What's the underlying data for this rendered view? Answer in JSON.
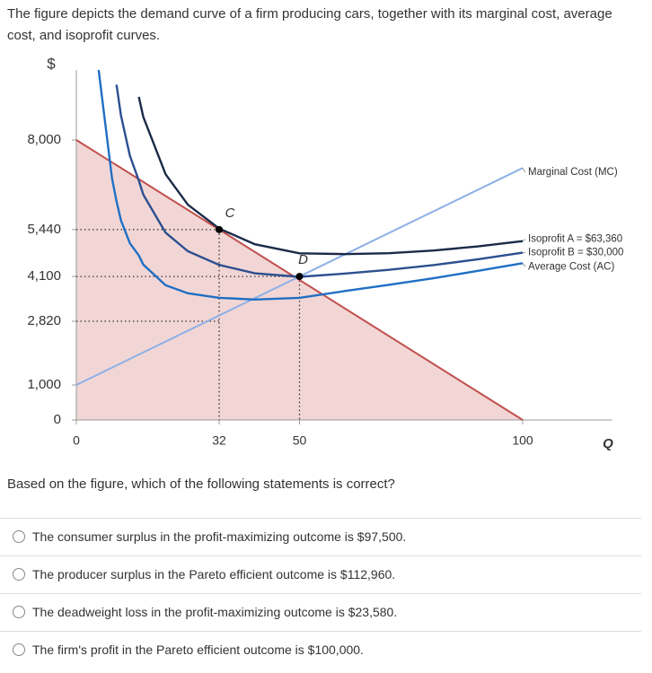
{
  "question": {
    "intro": "The figure depicts the demand curve of a firm producing cars, together with its marginal cost, average cost, and isoprofit curves.",
    "prompt": "Based on the figure, which of the following statements is correct?",
    "options": [
      "The consumer surplus in the profit-maximizing outcome is $97,500.",
      "The producer surplus in the Pareto efficient outcome is $112,960.",
      "The deadweight loss in the profit-maximizing outcome is $23,580.",
      "The firm's profit in the Pareto efficient outcome is $100,000."
    ]
  },
  "chart_data": {
    "type": "line",
    "x_label": "Q",
    "y_label": "$",
    "xlim": [
      0,
      120
    ],
    "ylim": [
      0,
      10000
    ],
    "xticks": [
      0,
      32,
      50,
      100
    ],
    "yticks": [
      0,
      {
        "value": 1000,
        "label": "1,000"
      },
      {
        "value": 2820,
        "label": "2,820"
      },
      {
        "value": 4100,
        "label": "4,100"
      },
      {
        "value": 5440,
        "label": "5,440"
      },
      {
        "value": 8000,
        "label": "8,000"
      }
    ],
    "series": [
      {
        "name": "Demand",
        "color": "#c0504d",
        "fill": "#f2d6d6",
        "x": [
          0,
          100
        ],
        "values": [
          8000,
          0
        ]
      },
      {
        "name": "Marginal Cost (MC)",
        "color": "#8db0e6",
        "x": [
          0,
          100
        ],
        "values": [
          1000,
          7200
        ]
      },
      {
        "name": "Isoprofit A = $63,360",
        "color": "#1b2a48",
        "x": [
          5,
          8,
          9,
          10,
          12,
          14,
          15,
          20,
          25,
          32,
          40,
          50,
          60,
          70,
          80,
          90,
          100
        ],
        "values": [
          null,
          null,
          null,
          null,
          null,
          9230,
          8660,
          7020,
          6150,
          5470,
          5020,
          4760,
          4740,
          4765,
          4840,
          4960,
          5110
        ]
      },
      {
        "name": "Isoprofit B = $30,000",
        "color": "#2c4f8f",
        "x": [
          5,
          8,
          9,
          10,
          12,
          14,
          15,
          20,
          25,
          32,
          40,
          50,
          60,
          70,
          80,
          90,
          100
        ],
        "values": [
          null,
          null,
          9580,
          8700,
          7550,
          6840,
          6440,
          5350,
          4820,
          4430,
          4190,
          4090,
          4180,
          4290,
          4425,
          4590,
          4780
        ]
      },
      {
        "name": "Average Cost (AC)",
        "color": "#1f6fc4",
        "x": [
          5,
          8,
          9,
          10,
          12,
          14,
          15,
          20,
          25,
          32,
          40,
          50,
          60,
          70,
          80,
          90,
          100
        ],
        "values": [
          10000,
          6900,
          6250,
          5700,
          5050,
          4700,
          4440,
          3850,
          3620,
          3490,
          3440,
          3490,
          3680,
          3860,
          4050,
          4260,
          4480
        ]
      }
    ],
    "points": [
      {
        "label": "C",
        "x": 32,
        "y": 5440
      },
      {
        "label": "D",
        "x": 50,
        "y": 4100
      }
    ]
  }
}
